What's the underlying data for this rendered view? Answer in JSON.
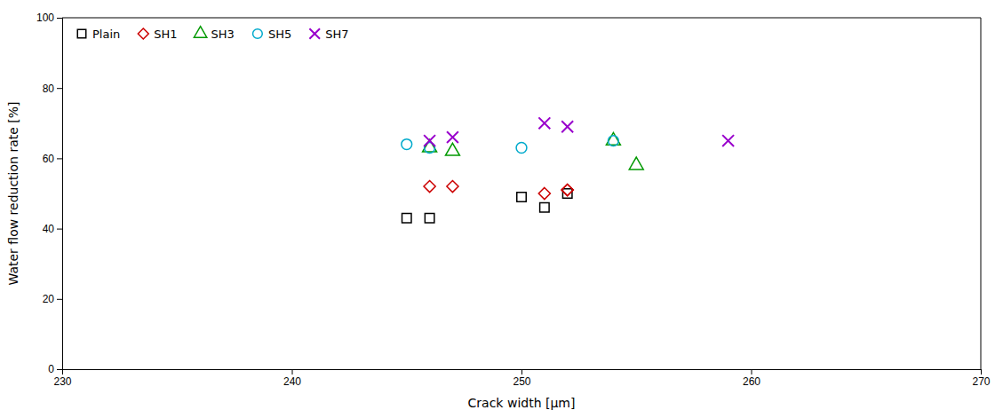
{
  "chart_data": {
    "type": "scatter",
    "xlabel": "Crack width [μm]",
    "ylabel": "Water flow reduction rate [%]",
    "xlim": [
      230,
      270
    ],
    "ylim": [
      0,
      100
    ],
    "xticks": [
      230,
      240,
      250,
      260,
      270
    ],
    "yticks": [
      0,
      20,
      40,
      60,
      80,
      100
    ],
    "grid": false,
    "legend": "upper left",
    "series": [
      {
        "name": "Plain",
        "color": "#000000",
        "marker": "square",
        "x": [
          245,
          246,
          250,
          251,
          252
        ],
        "values": [
          43,
          43,
          49,
          46,
          50
        ]
      },
      {
        "name": "SH1",
        "color": "#cc0000",
        "marker": "diamond",
        "x": [
          246,
          247,
          251,
          252,
          252
        ],
        "values": [
          52,
          52,
          50,
          51,
          51
        ]
      },
      {
        "name": "SH3",
        "color": "#009900",
        "marker": "triangle",
        "x": [
          246,
          247,
          254,
          255
        ],
        "values": [
          63,
          62,
          65,
          58
        ]
      },
      {
        "name": "SH5",
        "color": "#00aacc",
        "marker": "circle",
        "x": [
          245,
          246,
          250,
          254
        ],
        "values": [
          64,
          63,
          63,
          65
        ]
      },
      {
        "name": "SH7",
        "color": "#9900cc",
        "marker": "x",
        "x": [
          246,
          247,
          251,
          252,
          259
        ],
        "values": [
          65,
          66,
          70,
          69,
          65
        ]
      }
    ]
  }
}
